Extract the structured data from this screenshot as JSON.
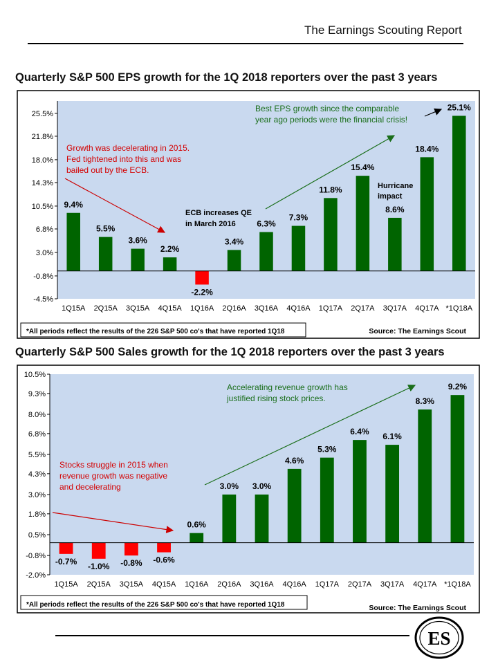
{
  "header": {
    "title": "The Earnings Scouting Report"
  },
  "chart_data": [
    {
      "type": "bar",
      "title": "Quarterly S&P 500 EPS growth for the 1Q 2018 reporters over the past 3 years",
      "categories": [
        "1Q15A",
        "2Q15A",
        "3Q15A",
        "4Q15A",
        "1Q16A",
        "2Q16A",
        "3Q16A",
        "4Q16A",
        "1Q17A",
        "2Q17A",
        "3Q17A",
        "4Q17A",
        "*1Q18A"
      ],
      "values": [
        9.4,
        5.5,
        3.6,
        2.2,
        -2.2,
        3.4,
        6.3,
        7.3,
        11.8,
        15.4,
        8.6,
        18.4,
        25.1
      ],
      "value_labels": [
        "9.4%",
        "5.5%",
        "3.6%",
        "2.2%",
        "-2.2%",
        "3.4%",
        "6.3%",
        "7.3%",
        "11.8%",
        "15.4%",
        "8.6%",
        "18.4%",
        "25.1%"
      ],
      "ylim": [
        -4.5,
        27.5
      ],
      "yticks": [
        -4.5,
        -0.8,
        3.0,
        6.8,
        10.5,
        14.3,
        18.0,
        21.8,
        25.5
      ],
      "ytick_labels": [
        "-4.5%",
        "-0.8%",
        "3.0%",
        "6.8%",
        "10.5%",
        "14.3%",
        "18.0%",
        "21.8%",
        "25.5%"
      ],
      "xlabel": "",
      "ylabel": "",
      "positive_color": "#006400",
      "negative_color": "#ff0000",
      "plot_bg": "#c9d9ef",
      "annotations": {
        "red_lines": [
          "Growth was decelerating in 2015.",
          "Fed tightened into this and was",
          "bailed out by the ECB."
        ],
        "ecb_lines": [
          "ECB increases QE",
          "in March  2016"
        ],
        "green_lines": [
          "Best EPS growth since the comparable",
          "year ago periods were the financial crisis!"
        ],
        "hurricane_lines": [
          "Hurricane",
          "impact"
        ]
      },
      "footnote": "*All periods  reflect the results of the 226 S&P 500 co's that have reported  1Q18",
      "source": "Source:  The Earnings Scout"
    },
    {
      "type": "bar",
      "title": "Quarterly S&P 500 Sales growth for the 1Q 2018 reporters over the past 3 years",
      "categories": [
        "1Q15A",
        "2Q15A",
        "3Q15A",
        "4Q15A",
        "1Q16A",
        "2Q16A",
        "3Q16A",
        "4Q16A",
        "1Q17A",
        "2Q17A",
        "3Q17A",
        "4Q17A",
        "*1Q18A"
      ],
      "values": [
        -0.7,
        -1.0,
        -0.8,
        -0.6,
        0.6,
        3.0,
        3.0,
        4.6,
        5.3,
        6.4,
        6.1,
        8.3,
        9.2
      ],
      "value_labels": [
        "-0.7%",
        "-1.0%",
        "-0.8%",
        "-0.6%",
        "0.6%",
        "3.0%",
        "3.0%",
        "4.6%",
        "5.3%",
        "6.4%",
        "6.1%",
        "8.3%",
        "9.2%"
      ],
      "ylim": [
        -2.0,
        10.5
      ],
      "yticks": [
        -2.0,
        -0.8,
        0.5,
        1.8,
        3.0,
        4.3,
        5.5,
        6.8,
        8.0,
        9.3,
        10.5
      ],
      "ytick_labels": [
        "-2.0%",
        "-0.8%",
        "0.5%",
        "1.8%",
        "3.0%",
        "4.3%",
        "5.5%",
        "6.8%",
        "8.0%",
        "9.3%",
        "10.5%"
      ],
      "xlabel": "",
      "ylabel": "",
      "positive_color": "#006400",
      "negative_color": "#ff0000",
      "plot_bg": "#c9d9ef",
      "annotations": {
        "red_lines": [
          "Stocks struggle in 2015 when",
          "revenue growth was negative",
          "and decelerating"
        ],
        "green_lines": [
          "Accelerating revenue growth has",
          "justified  rising  stock prices."
        ]
      },
      "footnote": "*All periods  reflect the results of the 226 S&P 500 co's that have reported  1Q18",
      "source": "Source: The Earnings Scout"
    }
  ],
  "logo": {
    "text": "ES"
  }
}
